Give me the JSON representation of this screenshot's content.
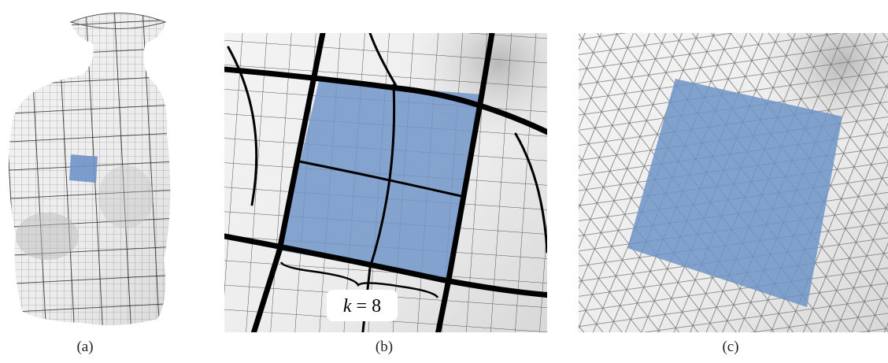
{
  "panels": [
    {
      "caption": "(a)"
    },
    {
      "caption": "(b)",
      "annotation": {
        "symbol": "k",
        "relation": "=",
        "value": 8
      }
    },
    {
      "caption": "(c)"
    }
  ]
}
